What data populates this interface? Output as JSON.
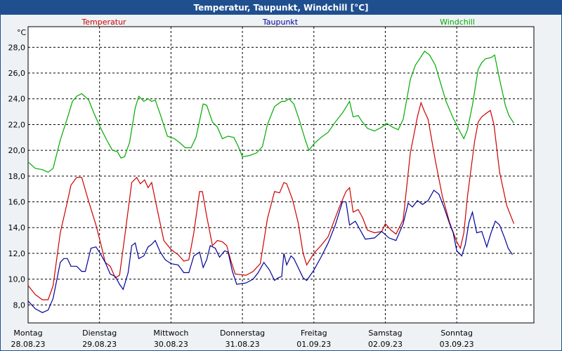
{
  "title": "Temperatur, Taupunkt, Windchill [°C]",
  "chart_data": {
    "type": "line",
    "title": "Temperatur, Taupunkt, Windchill [°C]",
    "ylabel": "°C",
    "ylim": [
      6.6,
      29.6
    ],
    "xlim": [
      0,
      7.08
    ],
    "yticks": [
      "28,0",
      "26,0",
      "24,0",
      "22,0",
      "20,0",
      "18,0",
      "16,0",
      "14,0",
      "12,0",
      "10,0",
      "8,0"
    ],
    "ytick_values": [
      28,
      26,
      24,
      22,
      20,
      18,
      16,
      14,
      12,
      10,
      8
    ],
    "xticks": [
      {
        "day": "Montag",
        "date": "28.08.23"
      },
      {
        "day": "Dienstag",
        "date": "29.08.23"
      },
      {
        "day": "Mittwoch",
        "date": "30.08.23"
      },
      {
        "day": "Donnerstag",
        "date": "31.08.23"
      },
      {
        "day": "Freitag",
        "date": "01.09.23"
      },
      {
        "day": "Samstag",
        "date": "02.09.23"
      },
      {
        "day": "Sonntag",
        "date": "03.09.23"
      }
    ],
    "grid": true,
    "series": [
      {
        "name": "Temperatur",
        "color": "#cc0000",
        "points": [
          [
            0,
            9.5
          ],
          [
            0.1,
            8.8
          ],
          [
            0.2,
            8.4
          ],
          [
            0.28,
            8.4
          ],
          [
            0.35,
            9.5
          ],
          [
            0.45,
            13.6
          ],
          [
            0.55,
            16.0
          ],
          [
            0.6,
            17.3
          ],
          [
            0.68,
            17.9
          ],
          [
            0.75,
            17.9
          ],
          [
            0.85,
            16.0
          ],
          [
            0.95,
            14.2
          ],
          [
            1.02,
            12.7
          ],
          [
            1.08,
            11.3
          ],
          [
            1.15,
            11.0
          ],
          [
            1.22,
            10.1
          ],
          [
            1.28,
            10.3
          ],
          [
            1.35,
            13.2
          ],
          [
            1.45,
            17.5
          ],
          [
            1.52,
            17.9
          ],
          [
            1.57,
            17.4
          ],
          [
            1.63,
            17.7
          ],
          [
            1.68,
            17.1
          ],
          [
            1.73,
            17.5
          ],
          [
            1.8,
            15.6
          ],
          [
            1.9,
            13.0
          ],
          [
            2.0,
            12.3
          ],
          [
            2.1,
            11.9
          ],
          [
            2.18,
            11.4
          ],
          [
            2.25,
            11.5
          ],
          [
            2.32,
            13.6
          ],
          [
            2.4,
            16.8
          ],
          [
            2.44,
            16.8
          ],
          [
            2.5,
            14.9
          ],
          [
            2.58,
            12.6
          ],
          [
            2.65,
            13.0
          ],
          [
            2.72,
            12.9
          ],
          [
            2.78,
            12.6
          ],
          [
            2.84,
            11.4
          ],
          [
            2.9,
            10.4
          ],
          [
            3.05,
            10.3
          ],
          [
            3.15,
            10.6
          ],
          [
            3.25,
            11.2
          ],
          [
            3.35,
            14.7
          ],
          [
            3.45,
            16.8
          ],
          [
            3.52,
            16.7
          ],
          [
            3.58,
            17.5
          ],
          [
            3.62,
            17.4
          ],
          [
            3.7,
            16.2
          ],
          [
            3.78,
            14.4
          ],
          [
            3.85,
            12.0
          ],
          [
            3.9,
            11.1
          ],
          [
            4.0,
            12.0
          ],
          [
            4.1,
            12.6
          ],
          [
            4.2,
            13.3
          ],
          [
            4.35,
            15.5
          ],
          [
            4.45,
            16.8
          ],
          [
            4.5,
            17.1
          ],
          [
            4.55,
            15.2
          ],
          [
            4.62,
            15.4
          ],
          [
            4.68,
            14.8
          ],
          [
            4.75,
            13.8
          ],
          [
            4.85,
            13.6
          ],
          [
            4.95,
            13.7
          ],
          [
            5.0,
            14.3
          ],
          [
            5.08,
            13.8
          ],
          [
            5.15,
            13.5
          ],
          [
            5.25,
            14.6
          ],
          [
            5.35,
            19.8
          ],
          [
            5.45,
            22.6
          ],
          [
            5.5,
            23.7
          ],
          [
            5.55,
            23.0
          ],
          [
            5.6,
            22.4
          ],
          [
            5.7,
            19.2
          ],
          [
            5.8,
            16.4
          ],
          [
            5.9,
            14.4
          ],
          [
            6.0,
            12.9
          ],
          [
            6.05,
            12.4
          ],
          [
            6.1,
            13.6
          ],
          [
            6.15,
            16.4
          ],
          [
            6.25,
            20.7
          ],
          [
            6.3,
            22.2
          ],
          [
            6.35,
            22.6
          ],
          [
            6.42,
            22.9
          ],
          [
            6.47,
            23.1
          ],
          [
            6.52,
            22.0
          ],
          [
            6.6,
            18.3
          ],
          [
            6.7,
            15.7
          ],
          [
            6.8,
            14.3
          ]
        ]
      },
      {
        "name": "Taupunkt",
        "color": "#000099",
        "points": [
          [
            0,
            8.3
          ],
          [
            0.1,
            7.7
          ],
          [
            0.2,
            7.4
          ],
          [
            0.28,
            7.6
          ],
          [
            0.35,
            8.5
          ],
          [
            0.45,
            11.3
          ],
          [
            0.5,
            11.6
          ],
          [
            0.55,
            11.6
          ],
          [
            0.6,
            11.0
          ],
          [
            0.68,
            11.0
          ],
          [
            0.75,
            10.6
          ],
          [
            0.8,
            10.6
          ],
          [
            0.88,
            12.4
          ],
          [
            0.95,
            12.5
          ],
          [
            1.02,
            11.9
          ],
          [
            1.08,
            11.3
          ],
          [
            1.15,
            10.4
          ],
          [
            1.22,
            10.2
          ],
          [
            1.28,
            9.6
          ],
          [
            1.33,
            9.2
          ],
          [
            1.4,
            10.5
          ],
          [
            1.45,
            12.6
          ],
          [
            1.5,
            12.8
          ],
          [
            1.55,
            11.6
          ],
          [
            1.62,
            11.8
          ],
          [
            1.68,
            12.5
          ],
          [
            1.73,
            12.7
          ],
          [
            1.78,
            13.0
          ],
          [
            1.85,
            12.1
          ],
          [
            1.92,
            11.5
          ],
          [
            2.0,
            11.2
          ],
          [
            2.1,
            11.1
          ],
          [
            2.18,
            10.5
          ],
          [
            2.25,
            10.5
          ],
          [
            2.32,
            11.8
          ],
          [
            2.4,
            12.1
          ],
          [
            2.45,
            10.9
          ],
          [
            2.5,
            11.5
          ],
          [
            2.55,
            12.6
          ],
          [
            2.62,
            12.4
          ],
          [
            2.68,
            11.7
          ],
          [
            2.75,
            12.2
          ],
          [
            2.8,
            12.1
          ],
          [
            2.86,
            10.6
          ],
          [
            2.92,
            9.6
          ],
          [
            3.05,
            9.7
          ],
          [
            3.15,
            10.0
          ],
          [
            3.22,
            10.5
          ],
          [
            3.3,
            11.3
          ],
          [
            3.38,
            10.7
          ],
          [
            3.45,
            9.9
          ],
          [
            3.5,
            10.1
          ],
          [
            3.55,
            10.2
          ],
          [
            3.58,
            12.0
          ],
          [
            3.62,
            11.1
          ],
          [
            3.68,
            11.8
          ],
          [
            3.72,
            11.6
          ],
          [
            3.78,
            10.9
          ],
          [
            3.85,
            10.1
          ],
          [
            3.9,
            9.9
          ],
          [
            4.0,
            10.7
          ],
          [
            4.1,
            11.7
          ],
          [
            4.2,
            12.8
          ],
          [
            4.3,
            14.2
          ],
          [
            4.4,
            16.0
          ],
          [
            4.45,
            16.0
          ],
          [
            4.5,
            14.2
          ],
          [
            4.58,
            14.5
          ],
          [
            4.65,
            13.8
          ],
          [
            4.72,
            13.1
          ],
          [
            4.85,
            13.2
          ],
          [
            4.95,
            13.7
          ],
          [
            5.05,
            13.2
          ],
          [
            5.15,
            13.0
          ],
          [
            5.25,
            14.3
          ],
          [
            5.32,
            15.9
          ],
          [
            5.38,
            15.6
          ],
          [
            5.45,
            16.1
          ],
          [
            5.52,
            15.8
          ],
          [
            5.6,
            16.1
          ],
          [
            5.68,
            16.9
          ],
          [
            5.75,
            16.6
          ],
          [
            5.82,
            15.6
          ],
          [
            5.9,
            14.3
          ],
          [
            5.95,
            13.6
          ],
          [
            6.0,
            12.2
          ],
          [
            6.07,
            11.8
          ],
          [
            6.12,
            12.7
          ],
          [
            6.17,
            14.4
          ],
          [
            6.22,
            15.2
          ],
          [
            6.28,
            13.6
          ],
          [
            6.35,
            13.7
          ],
          [
            6.42,
            12.5
          ],
          [
            6.48,
            13.6
          ],
          [
            6.54,
            14.5
          ],
          [
            6.6,
            14.2
          ],
          [
            6.67,
            13.2
          ],
          [
            6.72,
            12.4
          ],
          [
            6.78,
            11.9
          ]
        ]
      },
      {
        "name": "Windchill",
        "color": "#00aa00",
        "points": [
          [
            0,
            19.1
          ],
          [
            0.1,
            18.6
          ],
          [
            0.2,
            18.5
          ],
          [
            0.28,
            18.3
          ],
          [
            0.35,
            18.6
          ],
          [
            0.45,
            20.8
          ],
          [
            0.55,
            22.5
          ],
          [
            0.62,
            23.8
          ],
          [
            0.68,
            24.2
          ],
          [
            0.75,
            24.4
          ],
          [
            0.85,
            23.9
          ],
          [
            0.92,
            22.9
          ],
          [
            1.0,
            21.9
          ],
          [
            1.1,
            20.8
          ],
          [
            1.18,
            20.0
          ],
          [
            1.25,
            19.9
          ],
          [
            1.3,
            19.4
          ],
          [
            1.35,
            19.5
          ],
          [
            1.42,
            20.6
          ],
          [
            1.5,
            23.3
          ],
          [
            1.55,
            24.2
          ],
          [
            1.62,
            23.8
          ],
          [
            1.68,
            24.0
          ],
          [
            1.73,
            23.8
          ],
          [
            1.78,
            23.9
          ],
          [
            1.85,
            22.8
          ],
          [
            1.95,
            21.1
          ],
          [
            2.05,
            20.9
          ],
          [
            2.12,
            20.6
          ],
          [
            2.2,
            20.2
          ],
          [
            2.28,
            20.2
          ],
          [
            2.35,
            21.0
          ],
          [
            2.45,
            23.6
          ],
          [
            2.5,
            23.5
          ],
          [
            2.58,
            22.2
          ],
          [
            2.65,
            21.8
          ],
          [
            2.72,
            20.9
          ],
          [
            2.8,
            21.1
          ],
          [
            2.88,
            21.0
          ],
          [
            2.95,
            20.2
          ],
          [
            3.0,
            19.5
          ],
          [
            3.1,
            19.6
          ],
          [
            3.2,
            19.8
          ],
          [
            3.28,
            20.3
          ],
          [
            3.35,
            22.0
          ],
          [
            3.45,
            23.4
          ],
          [
            3.55,
            23.8
          ],
          [
            3.6,
            23.8
          ],
          [
            3.65,
            24.0
          ],
          [
            3.72,
            23.6
          ],
          [
            3.8,
            22.3
          ],
          [
            3.88,
            20.8
          ],
          [
            3.93,
            20.0
          ],
          [
            4.0,
            20.5
          ],
          [
            4.1,
            21.0
          ],
          [
            4.2,
            21.4
          ],
          [
            4.3,
            22.2
          ],
          [
            4.4,
            22.9
          ],
          [
            4.5,
            23.8
          ],
          [
            4.55,
            22.6
          ],
          [
            4.62,
            22.7
          ],
          [
            4.68,
            22.2
          ],
          [
            4.75,
            21.7
          ],
          [
            4.85,
            21.5
          ],
          [
            4.95,
            21.8
          ],
          [
            5.02,
            22.1
          ],
          [
            5.1,
            21.8
          ],
          [
            5.18,
            21.6
          ],
          [
            5.25,
            22.4
          ],
          [
            5.35,
            25.5
          ],
          [
            5.42,
            26.6
          ],
          [
            5.48,
            27.1
          ],
          [
            5.55,
            27.7
          ],
          [
            5.62,
            27.4
          ],
          [
            5.7,
            26.6
          ],
          [
            5.78,
            25.1
          ],
          [
            5.85,
            23.8
          ],
          [
            5.95,
            22.5
          ],
          [
            6.05,
            21.4
          ],
          [
            6.1,
            20.9
          ],
          [
            6.15,
            21.6
          ],
          [
            6.22,
            23.5
          ],
          [
            6.3,
            26.3
          ],
          [
            6.35,
            26.8
          ],
          [
            6.4,
            27.1
          ],
          [
            6.48,
            27.2
          ],
          [
            6.53,
            27.4
          ],
          [
            6.6,
            25.5
          ],
          [
            6.68,
            23.5
          ],
          [
            6.73,
            22.7
          ],
          [
            6.8,
            22.1
          ]
        ]
      }
    ]
  }
}
